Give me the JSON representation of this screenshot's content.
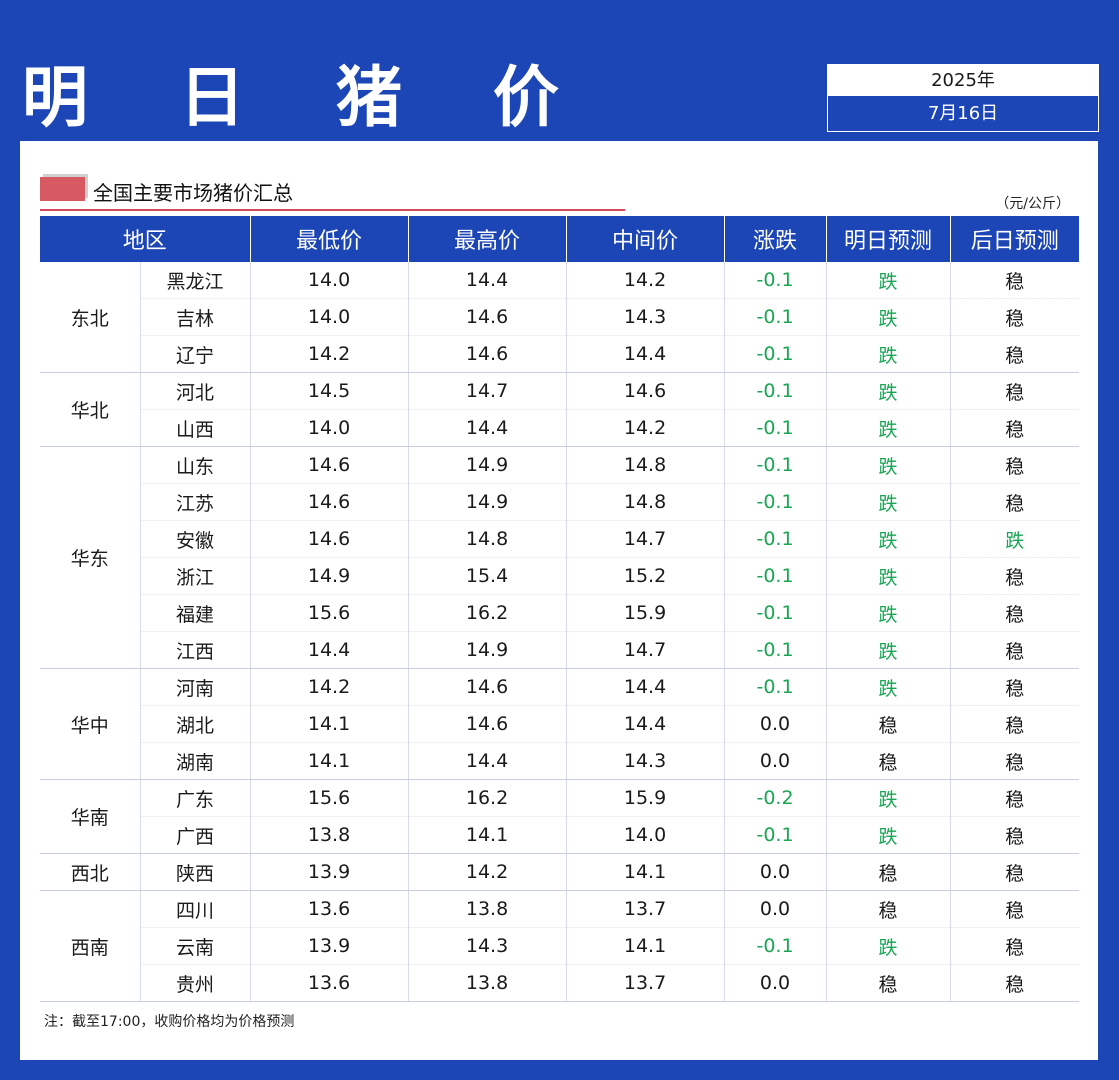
{
  "header": {
    "title": "明 日 猪 价",
    "year": "2025年",
    "date": "7月16日"
  },
  "section": {
    "title": "全国主要市场猪价汇总",
    "unit": "（元/公斤）"
  },
  "table": {
    "headers": [
      "地区",
      "最低价",
      "最高价",
      "中间价",
      "涨跌",
      "明日预测",
      "后日预测"
    ],
    "colors": {
      "down": "#1aa555",
      "normal": "#1a1a1a"
    },
    "regions": [
      {
        "name": "东北",
        "rows": [
          {
            "province": "黑龙江",
            "low": "14.0",
            "high": "14.4",
            "mid": "14.2",
            "change": "-0.1",
            "tomorrow": "跌",
            "dayafter": "稳"
          },
          {
            "province": "吉林",
            "low": "14.0",
            "high": "14.6",
            "mid": "14.3",
            "change": "-0.1",
            "tomorrow": "跌",
            "dayafter": "稳"
          },
          {
            "province": "辽宁",
            "low": "14.2",
            "high": "14.6",
            "mid": "14.4",
            "change": "-0.1",
            "tomorrow": "跌",
            "dayafter": "稳"
          }
        ]
      },
      {
        "name": "华北",
        "rows": [
          {
            "province": "河北",
            "low": "14.5",
            "high": "14.7",
            "mid": "14.6",
            "change": "-0.1",
            "tomorrow": "跌",
            "dayafter": "稳"
          },
          {
            "province": "山西",
            "low": "14.0",
            "high": "14.4",
            "mid": "14.2",
            "change": "-0.1",
            "tomorrow": "跌",
            "dayafter": "稳"
          }
        ]
      },
      {
        "name": "华东",
        "rows": [
          {
            "province": "山东",
            "low": "14.6",
            "high": "14.9",
            "mid": "14.8",
            "change": "-0.1",
            "tomorrow": "跌",
            "dayafter": "稳"
          },
          {
            "province": "江苏",
            "low": "14.6",
            "high": "14.9",
            "mid": "14.8",
            "change": "-0.1",
            "tomorrow": "跌",
            "dayafter": "稳"
          },
          {
            "province": "安徽",
            "low": "14.6",
            "high": "14.8",
            "mid": "14.7",
            "change": "-0.1",
            "tomorrow": "跌",
            "dayafter": "跌"
          },
          {
            "province": "浙江",
            "low": "14.9",
            "high": "15.4",
            "mid": "15.2",
            "change": "-0.1",
            "tomorrow": "跌",
            "dayafter": "稳"
          },
          {
            "province": "福建",
            "low": "15.6",
            "high": "16.2",
            "mid": "15.9",
            "change": "-0.1",
            "tomorrow": "跌",
            "dayafter": "稳"
          },
          {
            "province": "江西",
            "low": "14.4",
            "high": "14.9",
            "mid": "14.7",
            "change": "-0.1",
            "tomorrow": "跌",
            "dayafter": "稳"
          }
        ]
      },
      {
        "name": "华中",
        "rows": [
          {
            "province": "河南",
            "low": "14.2",
            "high": "14.6",
            "mid": "14.4",
            "change": "-0.1",
            "tomorrow": "跌",
            "dayafter": "稳"
          },
          {
            "province": "湖北",
            "low": "14.1",
            "high": "14.6",
            "mid": "14.4",
            "change": "0.0",
            "tomorrow": "稳",
            "dayafter": "稳"
          },
          {
            "province": "湖南",
            "low": "14.1",
            "high": "14.4",
            "mid": "14.3",
            "change": "0.0",
            "tomorrow": "稳",
            "dayafter": "稳"
          }
        ]
      },
      {
        "name": "华南",
        "rows": [
          {
            "province": "广东",
            "low": "15.6",
            "high": "16.2",
            "mid": "15.9",
            "change": "-0.2",
            "tomorrow": "跌",
            "dayafter": "稳"
          },
          {
            "province": "广西",
            "low": "13.8",
            "high": "14.1",
            "mid": "14.0",
            "change": "-0.1",
            "tomorrow": "跌",
            "dayafter": "稳"
          }
        ]
      },
      {
        "name": "西北",
        "rows": [
          {
            "province": "陕西",
            "low": "13.9",
            "high": "14.2",
            "mid": "14.1",
            "change": "0.0",
            "tomorrow": "稳",
            "dayafter": "稳"
          }
        ]
      },
      {
        "name": "西南",
        "rows": [
          {
            "province": "四川",
            "low": "13.6",
            "high": "13.8",
            "mid": "13.7",
            "change": "0.0",
            "tomorrow": "稳",
            "dayafter": "稳"
          },
          {
            "province": "云南",
            "low": "13.9",
            "high": "14.3",
            "mid": "14.1",
            "change": "-0.1",
            "tomorrow": "跌",
            "dayafter": "稳"
          },
          {
            "province": "贵州",
            "low": "13.6",
            "high": "13.8",
            "mid": "13.7",
            "change": "0.0",
            "tomorrow": "稳",
            "dayafter": "稳"
          }
        ]
      }
    ]
  },
  "footer": {
    "note": "注：截至17:00，收购价格均为价格预测"
  }
}
